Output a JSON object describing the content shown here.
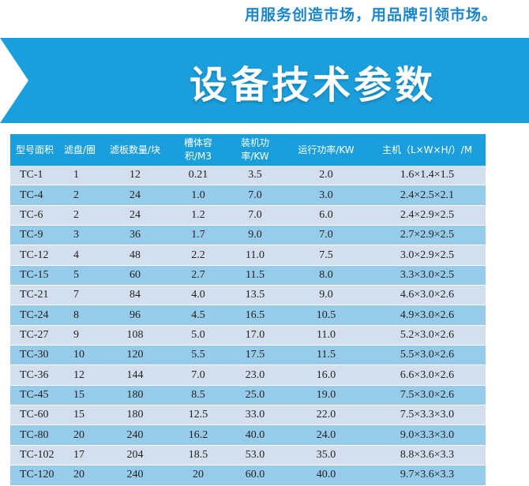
{
  "slogan": "用服务创造市场，用品牌引领市场。",
  "banner": {
    "title": "设备技术参数"
  },
  "table": {
    "headers": [
      "型号面积",
      "滤盘/圈",
      "滤板数量/块",
      "槽体容积/M3",
      "装机功率/KW",
      "运行功率/KW",
      "主机（L×W×H/）/M"
    ],
    "rows": [
      [
        "TC-1",
        "1",
        "12",
        "0.21",
        "3.5",
        "2.0",
        "1.6×1.4×1.5"
      ],
      [
        "TC-4",
        "2",
        "24",
        "1.0",
        "7.0",
        "3.0",
        "2.4×2.5×2.1"
      ],
      [
        "TC-6",
        "2",
        "24",
        "1.2",
        "7.0",
        "6.0",
        "2.4×2.9×2.5"
      ],
      [
        "TC-9",
        "3",
        "36",
        "1.7",
        "9.0",
        "7.0",
        "2.7×2.9×2.5"
      ],
      [
        "TC-12",
        "4",
        "48",
        "2.2",
        "11.0",
        "7.5",
        "3.0×2.9×2.5"
      ],
      [
        "TC-15",
        "5",
        "60",
        "2.7",
        "11.5",
        "8.0",
        "3.3×3.0×2.5"
      ],
      [
        "TC-21",
        "7",
        "84",
        "4.0",
        "13.5",
        "9.0",
        "4.6×3.0×2.6"
      ],
      [
        "TC-24",
        "8",
        "96",
        "4.5",
        "16.5",
        "10.5",
        "4.9×3.0×2.6"
      ],
      [
        "TC-27",
        "9",
        "108",
        "5.0",
        "17.0",
        "11.0",
        "5.2×3.0×2.6"
      ],
      [
        "TC-30",
        "10",
        "120",
        "5.5",
        "17.5",
        "11.5",
        "5.5×3.0×2.6"
      ],
      [
        "TC-36",
        "12",
        "144",
        "7.0",
        "23.0",
        "16.0",
        "6.6×3.0×2.6"
      ],
      [
        "TC-45",
        "15",
        "180",
        "8.5",
        "25.0",
        "19.0",
        "7.5×3.0×2.6"
      ],
      [
        "TC-60",
        "15",
        "180",
        "12.5",
        "33.0",
        "22.0",
        "7.5×3.3×3.0"
      ],
      [
        "TC-80",
        "20",
        "240",
        "16.2",
        "40.0",
        "24.0",
        "9.0×3.3×3.0"
      ],
      [
        "TC-102",
        "17",
        "204",
        "18.5",
        "53.0",
        "35.0",
        "8.8×3.6×3.3"
      ],
      [
        "TC-120",
        "20",
        "240",
        "20",
        "60.0",
        "40.0",
        "9.7×3.6×3.3"
      ]
    ]
  }
}
